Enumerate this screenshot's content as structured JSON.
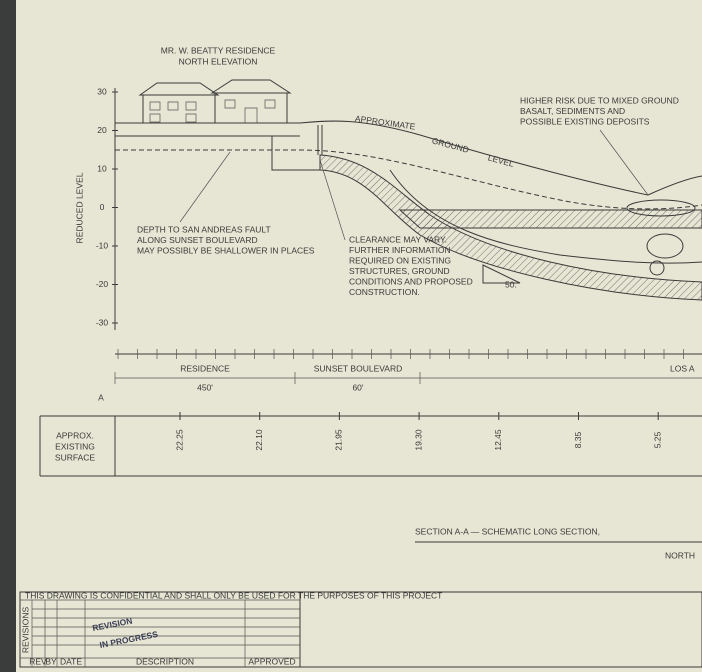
{
  "house": {
    "title": "MR. W. BEATTY RESIDENCE",
    "subtitle": "NORTH ELEVATION"
  },
  "axis": {
    "label": "REDUCED LEVEL",
    "ticks": [
      "30",
      "20",
      "10",
      "0",
      "-10",
      "-20",
      "-30"
    ]
  },
  "ground": [
    "APPROXIMATE",
    "GROUND",
    "LEVEL"
  ],
  "notes": {
    "risk": [
      "HIGHER RISK DUE TO MIXED GROUND",
      "BASALT, SEDIMENTS AND",
      "POSSIBLE EXISTING DEPOSITS"
    ],
    "fault": [
      "DEPTH TO SAN ANDREAS FAULT",
      "ALONG SUNSET BOULEVARD",
      "MAY POSSIBLY BE SHALLOWER IN PLACES"
    ],
    "clearance": [
      "CLEARANCE MAY VARY.",
      "FURTHER INFORMATION",
      "REQUIRED ON EXISTING",
      "STRUCTURES, GROUND",
      "CONDITIONS AND PROPOSED",
      "CONSTRUCTION."
    ],
    "slope": "50."
  },
  "sections": [
    {
      "name": "RESIDENCE",
      "length": "450'"
    },
    {
      "name": "SUNSET BOULEVARD",
      "length": "60'"
    },
    {
      "name": "LOS A"
    }
  ],
  "section_mark": "A",
  "surface": {
    "label": [
      "APPROX.",
      "EXISTING",
      "SURFACE"
    ],
    "values": [
      "22.25",
      "22.10",
      "21.95",
      "19.30",
      "12.45",
      "8.35",
      "5.25"
    ]
  },
  "title": {
    "main": "SECTION A-A — SCHEMATIC LONG SECTION,",
    "sub": "NORTH"
  },
  "title_block": {
    "notice": "THIS DRAWING IS CONFIDENTIAL AND SHALL ONLY BE USED FOR THE PURPOSES OF THIS PROJECT",
    "revisions": "REVISIONS",
    "columns": [
      "REV",
      "BY",
      "DATE",
      "DESCRIPTION",
      "APPROVED"
    ],
    "stamp": [
      "REVISION",
      "IN PROGRESS"
    ]
  }
}
